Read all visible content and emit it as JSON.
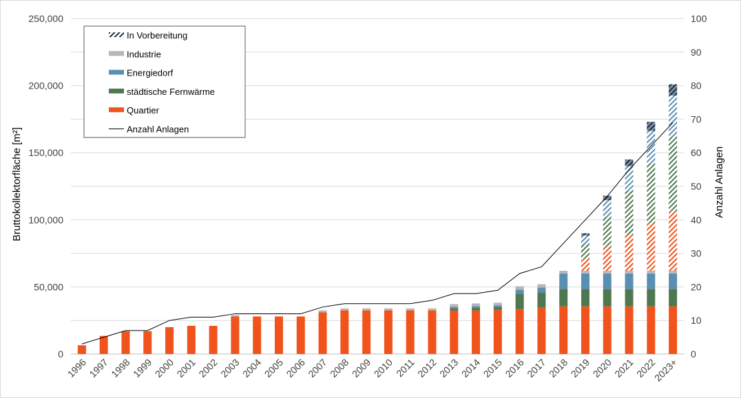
{
  "chart_data": {
    "type": "bar",
    "stacked": true,
    "categories": [
      "1996",
      "1997",
      "1998",
      "1999",
      "2000",
      "2001",
      "2002",
      "2003",
      "2004",
      "2005",
      "2006",
      "2007",
      "2008",
      "2009",
      "2010",
      "2011",
      "2012",
      "2013",
      "2014",
      "2015",
      "2016",
      "2017",
      "2018",
      "2019",
      "2020",
      "2021",
      "2022",
      "2023+"
    ],
    "series": [
      {
        "name": "Quartier",
        "color": "#f0541c",
        "values": [
          6500,
          13500,
          17000,
          17000,
          20000,
          21000,
          21000,
          28000,
          28000,
          28000,
          28000,
          31000,
          32500,
          32500,
          32500,
          32500,
          32500,
          32500,
          32500,
          33000,
          33500,
          34500,
          35500,
          35500,
          35500,
          35500,
          35500,
          35500
        ]
      },
      {
        "name": "städtische Fernwärme",
        "color": "#507850",
        "values": [
          0,
          0,
          0,
          0,
          0,
          0,
          0,
          0,
          0,
          0,
          0,
          0,
          0,
          0,
          0,
          0,
          0,
          1500,
          2000,
          2000,
          11500,
          11500,
          13000,
          13000,
          13000,
          13000,
          13000,
          13000
        ]
      },
      {
        "name": "Energiedorf",
        "color": "#5b8fb2",
        "values": [
          0,
          0,
          0,
          0,
          0,
          0,
          0,
          0,
          0,
          0,
          0,
          0,
          0,
          0,
          0,
          0,
          0,
          1200,
          1200,
          1200,
          3000,
          3500,
          11500,
          11500,
          11500,
          11500,
          11500,
          11500
        ]
      },
      {
        "name": "Industrie",
        "color": "#b7b7b7",
        "values": [
          0,
          0,
          0,
          0,
          0,
          0,
          0,
          1000,
          0,
          0,
          0,
          1500,
          1500,
          1500,
          1500,
          1500,
          1500,
          2000,
          2000,
          2000,
          2500,
          2500,
          2000,
          2000,
          2000,
          2000,
          2000,
          2000
        ]
      },
      {
        "name": "In Vorbereitung",
        "color": "#17314a",
        "pattern": "hatch",
        "values": [
          0,
          0,
          0,
          0,
          0,
          0,
          0,
          0,
          0,
          0,
          0,
          0,
          0,
          0,
          0,
          0,
          0,
          0,
          0,
          0,
          0,
          0,
          0,
          28000,
          56000,
          83000,
          111000,
          139000
        ]
      }
    ],
    "line_series": {
      "name": "Anzahl Anlagen",
      "color": "#000000",
      "axis": "right",
      "values": [
        3,
        5,
        7,
        7,
        10,
        11,
        11,
        12,
        12,
        12,
        12,
        14,
        15,
        15,
        15,
        15,
        16,
        18,
        18,
        19,
        24,
        26,
        33,
        40,
        47,
        55,
        62,
        69
      ]
    },
    "xlabel": "",
    "ylabel": "Bruttokollektorfläche  [m²]",
    "y2label": "Anzahl Anlagen",
    "ylim": [
      0,
      250000
    ],
    "y2lim": [
      0,
      100
    ],
    "yticks": [
      "0",
      "50,000",
      "100,000",
      "150,000",
      "200,000",
      "250,000"
    ],
    "y2ticks": [
      "0",
      "10",
      "20",
      "30",
      "40",
      "50",
      "60",
      "70",
      "80",
      "90",
      "100"
    ],
    "grid": true,
    "legend_position": "top-left",
    "legend": [
      "In Vorbereitung",
      "Industrie",
      "Energiedorf",
      "städtische Fernwärme",
      "Quartier",
      "Anzahl Anlagen"
    ]
  }
}
